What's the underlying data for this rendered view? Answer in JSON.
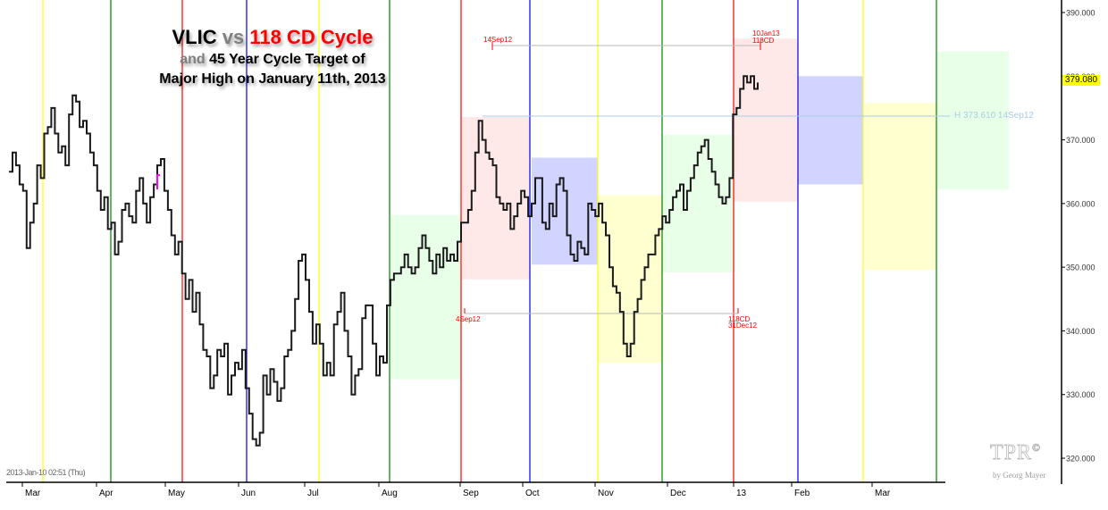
{
  "title": {
    "line1_a": "VLIC",
    "line1_b": "vs",
    "line1_c": "118 CD Cycle",
    "line2_a": "and",
    "line2_b": "45 Year Cycle Target of",
    "line3": "Major High on January 11th, 2013"
  },
  "timestamp": "2013-Jan-10 02:51 (Thu)",
  "last_price_tag": "379.080",
  "horizontal_line_label": "H 373.610 14Sep12",
  "logo": {
    "main": "TPR",
    "mark": "©",
    "sub": "by Georg Mayer"
  },
  "annotations": {
    "top_left": "14Sep12",
    "top_right_1": "10Jan13",
    "top_right_2": "118CD",
    "bottom_left": "4Sep12",
    "bottom_right_1": "118CD",
    "bottom_right_2": "31Dec12"
  },
  "colors": {
    "yellow": "#ffff00",
    "green": "#008000",
    "red": "#ff0000",
    "blue": "#0000ff",
    "box_green": "#e8ffe8",
    "box_pink": "#ffe8e8",
    "box_blue": "#d0d4ff",
    "box_yellow": "#ffffd0",
    "price_line": "#000000",
    "h_line": "#a8cce8"
  },
  "chart_data": {
    "type": "line",
    "title": "VLIC vs 118 CD Cycle and 45 Year Cycle Target of Major High on January 11th, 2013",
    "xlabel": "",
    "ylabel": "",
    "ylim": [
      318,
      392
    ],
    "yticks": [
      "390.000",
      "380.000",
      "370.000",
      "360.000",
      "350.000",
      "340.000",
      "330.000",
      "320.000"
    ],
    "x_tick_labels": [
      "Mar",
      "Apr",
      "May",
      "Jun",
      "Jul",
      "Aug",
      "Sep",
      "Oct",
      "Nov",
      "Dec",
      "13",
      "Feb",
      "Mar"
    ],
    "grid": false,
    "last_value": 379.08,
    "horizontal_line": {
      "label": "H 373.610 14Sep12",
      "value": 373.61
    },
    "cycle_lines": [
      {
        "color": "yellow",
        "month_pos": "early Mar"
      },
      {
        "color": "green",
        "month_pos": "Apr"
      },
      {
        "color": "red",
        "month_pos": "May"
      },
      {
        "color": "blue",
        "month_pos": "Jun"
      },
      {
        "color": "yellow",
        "month_pos": "Jul"
      },
      {
        "color": "green",
        "month_pos": "Aug"
      },
      {
        "color": "red",
        "month_pos": "late Aug"
      },
      {
        "color": "blue",
        "month_pos": "Oct"
      },
      {
        "color": "yellow",
        "month_pos": "Oct/Nov"
      },
      {
        "color": "green",
        "month_pos": "late Nov"
      },
      {
        "color": "red",
        "month_pos": "31Dec12"
      },
      {
        "color": "blue",
        "month_pos": "late Jan"
      },
      {
        "color": "yellow",
        "month_pos": "late Feb"
      },
      {
        "color": "green",
        "month_pos": "late Mar"
      }
    ],
    "boxes": [
      {
        "color": "green",
        "low": 332.4,
        "high": 358.2
      },
      {
        "color": "pink",
        "low": 348.1,
        "high": 373.6
      },
      {
        "color": "blue",
        "low": 350.4,
        "high": 367.2
      },
      {
        "color": "yellow",
        "low": 335.0,
        "high": 361.3
      },
      {
        "color": "green",
        "low": 349.2,
        "high": 370.8
      },
      {
        "color": "pink",
        "low": 360.3,
        "high": 385.9
      },
      {
        "color": "blue",
        "low": 363.0,
        "high": 380.0
      },
      {
        "color": "yellow",
        "low": 349.6,
        "high": 375.8
      },
      {
        "color": "green",
        "low": 362.2,
        "high": 383.9
      }
    ],
    "series": [
      {
        "name": "VLIC",
        "values": [
          365,
          368,
          366,
          363,
          362,
          353,
          357,
          360,
          366,
          364,
          371,
          372,
          375,
          371,
          368,
          369,
          366,
          374,
          377,
          376,
          372,
          373,
          371,
          368,
          366,
          362,
          359,
          361,
          356,
          357,
          352,
          354,
          359,
          360,
          358,
          357,
          362,
          364,
          360,
          357,
          361,
          363,
          366,
          367,
          362,
          359,
          355,
          352,
          354,
          349,
          345,
          348,
          343,
          346,
          341,
          337,
          336,
          331,
          333,
          337,
          336,
          338,
          330,
          333,
          335,
          334,
          337,
          331,
          327,
          323,
          322,
          324,
          333,
          330,
          334,
          332,
          329,
          331,
          336,
          337,
          340,
          345,
          351,
          352,
          348,
          343,
          338,
          341,
          338,
          333,
          335,
          333,
          341,
          343,
          346,
          340,
          336,
          330,
          333,
          334,
          342,
          344,
          344,
          338,
          333,
          336,
          335,
          344,
          348,
          349,
          349,
          350,
          352,
          350,
          349,
          350,
          353,
          355,
          353,
          351,
          349,
          352,
          350,
          353,
          351,
          352,
          351,
          354,
          357,
          357,
          359,
          362,
          368,
          373,
          370,
          368,
          367,
          366,
          361,
          360,
          359,
          360,
          356,
          358,
          360,
          362,
          361,
          358,
          360,
          364,
          364,
          357,
          356,
          360,
          358,
          363,
          364,
          362,
          355,
          352,
          351,
          354,
          353,
          352,
          360,
          359,
          358,
          360,
          357,
          355,
          350,
          347,
          346,
          343,
          338,
          336,
          338,
          343,
          345,
          348,
          350,
          352,
          352,
          355,
          356,
          358,
          357,
          359,
          361,
          362,
          363,
          359,
          362,
          364,
          366,
          368,
          369,
          370,
          367,
          365,
          363,
          361,
          360,
          361,
          364,
          374,
          375,
          378,
          380,
          379,
          380,
          378,
          379
        ]
      }
    ]
  }
}
